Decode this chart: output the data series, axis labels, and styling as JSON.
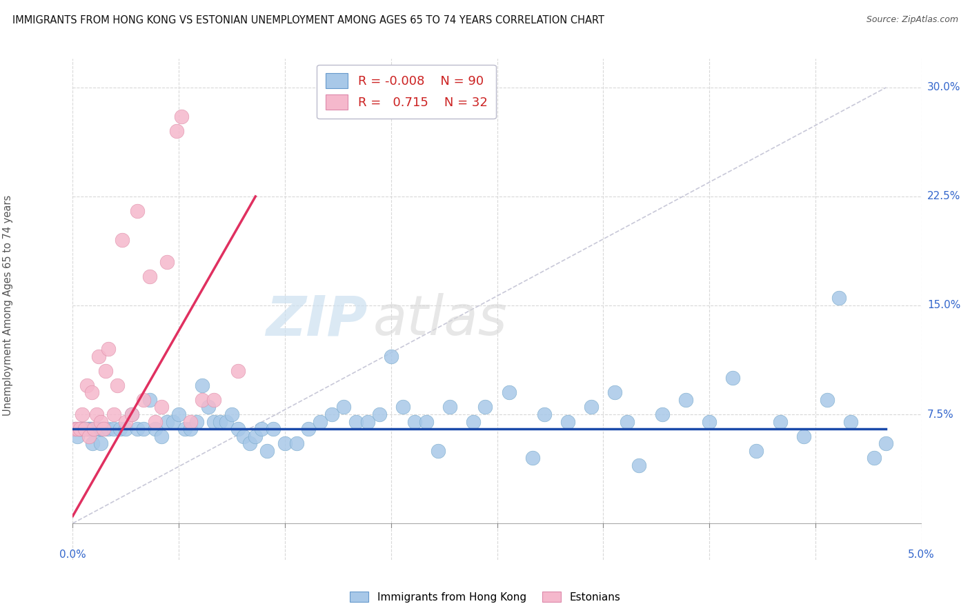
{
  "title": "IMMIGRANTS FROM HONG KONG VS ESTONIAN UNEMPLOYMENT AMONG AGES 65 TO 74 YEARS CORRELATION CHART",
  "source": "Source: ZipAtlas.com",
  "ylabel_label": "Unemployment Among Ages 65 to 74 years",
  "legend_blue_r": "-0.008",
  "legend_blue_n": "90",
  "legend_pink_r": "0.715",
  "legend_pink_n": "32",
  "blue_color": "#a8c8e8",
  "pink_color": "#f5b8cc",
  "blue_line_color": "#1a4aaa",
  "pink_line_color": "#e03060",
  "ref_line_color": "#c8c8d8",
  "grid_color": "#d8d8d8",
  "x_max_data": 5.0,
  "y_max_data": 30.0,
  "blue_dots_x": [
    0.02,
    0.04,
    0.05,
    0.06,
    0.07,
    0.08,
    0.09,
    0.1,
    0.11,
    0.12,
    0.13,
    0.14,
    0.15,
    0.16,
    0.17,
    0.18,
    0.19,
    0.2,
    0.21,
    0.22,
    0.23,
    0.24,
    0.25,
    0.27,
    0.3,
    0.35,
    0.4,
    0.45,
    0.5,
    0.55,
    0.6,
    0.65,
    0.7,
    0.75,
    0.8,
    0.85,
    0.9,
    0.95,
    1.0,
    1.05,
    1.1,
    1.15,
    1.2,
    1.25,
    1.3,
    1.35,
    1.4,
    1.45,
    1.5,
    1.55,
    1.6,
    1.65,
    1.7,
    1.8,
    1.9,
    2.0,
    2.1,
    2.2,
    2.3,
    2.4,
    2.5,
    2.6,
    2.7,
    2.8,
    2.9,
    3.0,
    3.1,
    3.2,
    3.4,
    3.5,
    3.7,
    3.9,
    4.0,
    4.2,
    4.4,
    4.6,
    4.7,
    4.8,
    5.0,
    5.2,
    5.4,
    5.6,
    5.8,
    6.0,
    6.2,
    6.4,
    6.5,
    6.6,
    6.8,
    6.9
  ],
  "blue_dots_y": [
    6.5,
    6.0,
    6.5,
    6.5,
    6.5,
    6.5,
    6.5,
    6.5,
    6.5,
    6.5,
    6.5,
    6.5,
    6.5,
    6.5,
    5.5,
    6.5,
    6.5,
    6.5,
    6.5,
    6.5,
    6.5,
    5.5,
    6.5,
    6.5,
    6.5,
    6.5,
    6.5,
    6.5,
    7.5,
    6.5,
    6.5,
    8.5,
    6.5,
    6.0,
    7.0,
    7.0,
    7.5,
    6.5,
    6.5,
    7.0,
    9.5,
    8.0,
    7.0,
    7.0,
    7.0,
    7.5,
    6.5,
    6.0,
    5.5,
    6.0,
    6.5,
    5.0,
    6.5,
    5.5,
    5.5,
    6.5,
    7.0,
    7.5,
    8.0,
    7.0,
    7.0,
    7.5,
    11.5,
    8.0,
    7.0,
    7.0,
    5.0,
    8.0,
    7.0,
    8.0,
    9.0,
    4.5,
    7.5,
    7.0,
    8.0,
    9.0,
    7.0,
    4.0,
    7.5,
    8.5,
    7.0,
    10.0,
    5.0,
    7.0,
    6.0,
    8.5,
    15.5,
    7.0,
    4.5,
    5.5
  ],
  "pink_dots_x": [
    0.02,
    0.04,
    0.06,
    0.08,
    0.1,
    0.12,
    0.14,
    0.16,
    0.18,
    0.2,
    0.22,
    0.24,
    0.26,
    0.28,
    0.3,
    0.35,
    0.38,
    0.42,
    0.45,
    0.5,
    0.55,
    0.6,
    0.65,
    0.7,
    0.75,
    0.8,
    0.88,
    0.92,
    1.0,
    1.1,
    1.2,
    1.4
  ],
  "pink_dots_y": [
    6.5,
    6.5,
    6.5,
    7.5,
    6.5,
    9.5,
    6.0,
    9.0,
    6.5,
    7.5,
    11.5,
    7.0,
    6.5,
    10.5,
    12.0,
    7.5,
    9.5,
    19.5,
    7.0,
    7.5,
    21.5,
    8.5,
    17.0,
    7.0,
    8.0,
    18.0,
    27.0,
    28.0,
    7.0,
    8.5,
    8.5,
    10.5
  ],
  "blue_trend_x0": 0.0,
  "blue_trend_x1": 6.9,
  "blue_trend_y0": 6.5,
  "blue_trend_y1": 6.5,
  "pink_trend_x0": 0.0,
  "pink_trend_x1": 1.55,
  "pink_trend_y0": 0.5,
  "pink_trend_y1": 22.5,
  "ref_line_x0": 0.0,
  "ref_line_x1": 6.9,
  "ref_line_y0": 0.0,
  "ref_line_y1": 30.0,
  "xlim": [
    0.0,
    7.2
  ],
  "ylim": [
    -2.5,
    32.0
  ],
  "xaxis_display_max": 5.0,
  "yaxis_ticks": [
    7.5,
    15.0,
    22.5,
    30.0
  ],
  "yaxis_tick_labels": [
    "7.5%",
    "15.0%",
    "22.5%",
    "30.0%"
  ]
}
